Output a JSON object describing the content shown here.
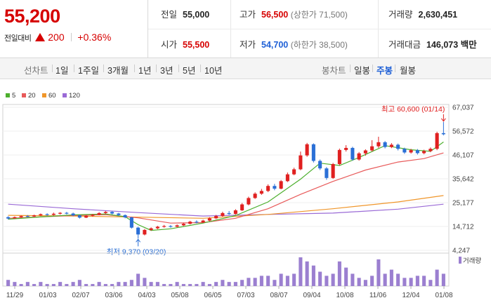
{
  "price": {
    "current": "55,200",
    "change_label": "전일대비",
    "change_amount": "200",
    "change_pct": "+0.36%",
    "direction": "up"
  },
  "stats": {
    "prev_close": {
      "label": "전일",
      "value": "55,000"
    },
    "high": {
      "label": "고가",
      "value": "56,500",
      "sub": "(상한가 71,500)"
    },
    "volume": {
      "label": "거래량",
      "value": "2,630,451"
    },
    "open": {
      "label": "시가",
      "value": "55,500"
    },
    "low": {
      "label": "저가",
      "value": "54,700",
      "sub": "(하한가 38,500)"
    },
    "amount": {
      "label": "거래대금",
      "value": "146,073",
      "unit": "백만"
    }
  },
  "toolbar": {
    "period_label": "선차트",
    "periods": [
      "1일",
      "1주일",
      "3개월",
      "1년",
      "3년",
      "5년",
      "10년"
    ],
    "candle_label": "봉차트",
    "candles": [
      "일봉",
      "주봉",
      "월봉"
    ],
    "active_candle": "주봉"
  },
  "colors": {
    "up": "#e02020",
    "down": "#2a6fd6",
    "ma5": "#4caf2d",
    "ma20": "#e85a5a",
    "ma60": "#f0962a",
    "ma120": "#9a6ad6",
    "volume": "#9b7fd0"
  },
  "chart_data": {
    "type": "candlestick",
    "legend": [
      {
        "name": "5",
        "color": "#4caf2d"
      },
      {
        "name": "20",
        "color": "#e85a5a"
      },
      {
        "name": "60",
        "color": "#f0962a"
      },
      {
        "name": "120",
        "color": "#9a6ad6"
      }
    ],
    "y_ticks": [
      "67,037",
      "56,572",
      "46,107",
      "35,642",
      "25,177",
      "14,712",
      "4,247"
    ],
    "ylim": [
      4247,
      67037
    ],
    "x_ticks": [
      "11/29",
      "01/03",
      "02/07",
      "03/06",
      "04/03",
      "05/08",
      "06/05",
      "07/03",
      "08/07",
      "09/04",
      "10/08",
      "11/06",
      "12/04",
      "01/08"
    ],
    "volume_label": "거래량",
    "annotations": {
      "max": "최고 60,600 (01/14)",
      "min": "최저 9,370 (03/20)"
    },
    "candles": [
      [
        18800,
        18200,
        19200,
        17800
      ],
      [
        18300,
        18800,
        19100,
        18000
      ],
      [
        18800,
        19300,
        19600,
        18500
      ],
      [
        19300,
        19100,
        19700,
        18800
      ],
      [
        19100,
        19600,
        19900,
        18900
      ],
      [
        19600,
        20100,
        20400,
        19300
      ],
      [
        20100,
        19800,
        20500,
        19400
      ],
      [
        19800,
        20300,
        20800,
        19500
      ],
      [
        20300,
        20700,
        21000,
        19900
      ],
      [
        20700,
        20400,
        21100,
        20000
      ],
      [
        20400,
        19600,
        20800,
        19200
      ],
      [
        19600,
        18600,
        19900,
        18200
      ],
      [
        18600,
        19400,
        19700,
        18400
      ],
      [
        19400,
        19900,
        20200,
        19000
      ],
      [
        19900,
        20600,
        21000,
        19600
      ],
      [
        20600,
        21100,
        21500,
        20200
      ],
      [
        21100,
        20400,
        21400,
        20000
      ],
      [
        20400,
        19700,
        20700,
        19300
      ],
      [
        19700,
        18700,
        20000,
        18300
      ],
      [
        18700,
        14200,
        18900,
        13800
      ],
      [
        14200,
        11200,
        14600,
        9370
      ],
      [
        11200,
        13200,
        13600,
        10800
      ],
      [
        13200,
        13900,
        14300,
        12800
      ],
      [
        13900,
        14600,
        15000,
        13500
      ],
      [
        14600,
        14900,
        15400,
        14200
      ],
      [
        14900,
        14600,
        15300,
        14200
      ],
      [
        14600,
        15200,
        15600,
        14300
      ],
      [
        15200,
        15900,
        16300,
        14900
      ],
      [
        15900,
        16800,
        17200,
        15600
      ],
      [
        16800,
        16500,
        17400,
        16100
      ],
      [
        16500,
        17300,
        17700,
        16200
      ],
      [
        17300,
        18300,
        18800,
        17000
      ],
      [
        18300,
        19300,
        19800,
        18000
      ],
      [
        19300,
        20600,
        21200,
        19000
      ],
      [
        20600,
        20200,
        21500,
        19800
      ],
      [
        20200,
        21800,
        22300,
        19900
      ],
      [
        21800,
        24400,
        25000,
        21500
      ],
      [
        24400,
        27200,
        27800,
        24000
      ],
      [
        27200,
        29100,
        29700,
        26800
      ],
      [
        29100,
        30300,
        31200,
        28600
      ],
      [
        30300,
        32500,
        33200,
        29800
      ],
      [
        32500,
        31300,
        33400,
        30600
      ],
      [
        31300,
        34600,
        35100,
        31000
      ],
      [
        34600,
        37600,
        38400,
        34200
      ],
      [
        37600,
        39800,
        40500,
        37200
      ],
      [
        39800,
        45900,
        47600,
        39400
      ],
      [
        45900,
        50800,
        51400,
        45300
      ],
      [
        50800,
        43500,
        51200,
        42800
      ],
      [
        43500,
        40200,
        44100,
        39500
      ],
      [
        40200,
        36000,
        40800,
        35200
      ],
      [
        36000,
        42100,
        42600,
        35600
      ],
      [
        42100,
        48300,
        48900,
        41500
      ],
      [
        48300,
        49200,
        50400,
        47600
      ],
      [
        49200,
        44100,
        49700,
        43600
      ],
      [
        44100,
        46800,
        47400,
        43600
      ],
      [
        46800,
        48100,
        48600,
        45800
      ],
      [
        48100,
        49900,
        52600,
        47600
      ],
      [
        49900,
        51700,
        54100,
        49200
      ],
      [
        51700,
        49600,
        52200,
        49000
      ],
      [
        49600,
        50600,
        51300,
        49100
      ],
      [
        50600,
        48800,
        51100,
        48100
      ],
      [
        48800,
        47200,
        49300,
        46600
      ],
      [
        47200,
        48200,
        48800,
        46700
      ],
      [
        48200,
        46900,
        48700,
        46300
      ],
      [
        46900,
        47800,
        48400,
        46400
      ],
      [
        47800,
        48800,
        49400,
        47300
      ],
      [
        48800,
        55700,
        56300,
        48200
      ],
      [
        55700,
        55200,
        60600,
        54700
      ]
    ],
    "ma5": [
      [
        0,
        17900
      ],
      [
        5,
        18900
      ],
      [
        10,
        19800
      ],
      [
        15,
        20200
      ],
      [
        18,
        19000
      ],
      [
        20,
        15500
      ],
      [
        22,
        13000
      ],
      [
        25,
        13700
      ],
      [
        30,
        16200
      ],
      [
        35,
        19500
      ],
      [
        40,
        25500
      ],
      [
        45,
        35500
      ],
      [
        48,
        42500
      ],
      [
        51,
        41500
      ],
      [
        54,
        45000
      ],
      [
        58,
        50200
      ],
      [
        62,
        48400
      ],
      [
        65,
        47700
      ],
      [
        67,
        51800
      ]
    ],
    "ma20": [
      [
        0,
        18300
      ],
      [
        10,
        19500
      ],
      [
        15,
        19900
      ],
      [
        20,
        18500
      ],
      [
        25,
        16200
      ],
      [
        30,
        16400
      ],
      [
        35,
        18300
      ],
      [
        40,
        22500
      ],
      [
        45,
        28800
      ],
      [
        50,
        34500
      ],
      [
        55,
        39500
      ],
      [
        60,
        43000
      ],
      [
        64,
        44500
      ],
      [
        67,
        47000
      ]
    ],
    "ma60": [
      [
        0,
        19600
      ],
      [
        10,
        19300
      ],
      [
        20,
        18800
      ],
      [
        30,
        18300
      ],
      [
        40,
        20000
      ],
      [
        50,
        22500
      ],
      [
        60,
        25500
      ],
      [
        67,
        28300
      ]
    ],
    "ma120": [
      [
        0,
        24500
      ],
      [
        10,
        22500
      ],
      [
        20,
        20800
      ],
      [
        30,
        19300
      ],
      [
        40,
        20000
      ],
      [
        50,
        20600
      ],
      [
        60,
        22300
      ],
      [
        67,
        24500
      ]
    ],
    "volume": [
      3,
      2,
      1,
      2,
      1,
      2,
      1,
      1,
      2,
      1,
      2,
      3,
      1,
      1,
      2,
      1,
      1,
      2,
      2,
      3,
      6,
      4,
      2,
      2,
      1,
      1,
      2,
      1,
      1,
      1,
      2,
      1,
      2,
      3,
      2,
      2,
      3,
      4,
      4,
      5,
      5,
      3,
      6,
      5,
      6,
      14,
      12,
      10,
      7,
      5,
      6,
      12,
      9,
      6,
      4,
      3,
      5,
      13,
      6,
      8,
      6,
      4,
      4,
      5,
      5,
      3,
      8,
      6
    ]
  }
}
